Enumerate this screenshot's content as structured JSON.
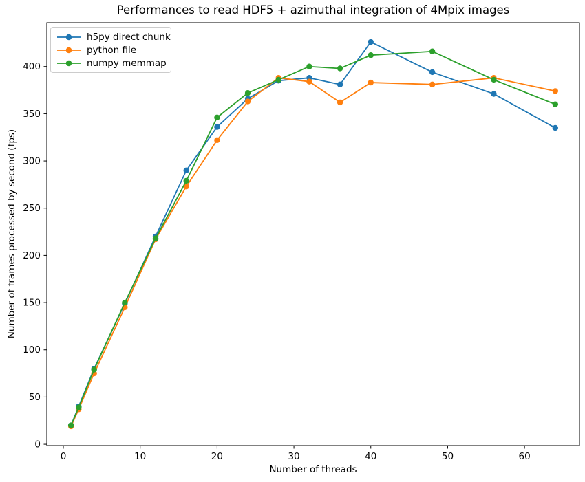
{
  "chart_data": {
    "type": "line",
    "title": "Performances to read HDF5 + azimuthal integration of 4Mpix images",
    "xlabel": "Number of threads",
    "ylabel": "Number of frames processed by second (fps)",
    "grid": false,
    "legend_position": "upper left",
    "marker": "circle",
    "x": [
      1,
      2,
      4,
      8,
      12,
      16,
      20,
      24,
      28,
      32,
      36,
      40,
      48,
      56,
      64
    ],
    "series": [
      {
        "name": "h5py direct chunk",
        "color": "#1f77b4",
        "values": [
          20,
          40,
          80,
          149,
          220,
          290,
          336,
          366,
          385,
          388,
          381,
          426,
          394,
          371,
          335
        ]
      },
      {
        "name": "python file",
        "color": "#ff7f0e",
        "values": [
          19,
          37,
          75,
          145,
          217,
          273,
          322,
          363,
          388,
          384,
          362,
          383,
          381,
          388,
          374
        ]
      },
      {
        "name": "numpy memmap",
        "color": "#2ca02c",
        "values": [
          20,
          39,
          79,
          150,
          218,
          279,
          346,
          372,
          386,
          400,
          398,
          412,
          416,
          386,
          360
        ]
      }
    ],
    "xticks": [
      0,
      10,
      20,
      30,
      40,
      50,
      60
    ],
    "yticks": [
      0,
      50,
      100,
      150,
      200,
      250,
      300,
      350,
      400
    ],
    "xlim": [
      -2.15,
      67.15
    ],
    "ylim": [
      -1.4,
      446.4
    ],
    "colors": {
      "spine": "#000000",
      "tick_text": "#000000",
      "background": "#ffffff"
    }
  }
}
